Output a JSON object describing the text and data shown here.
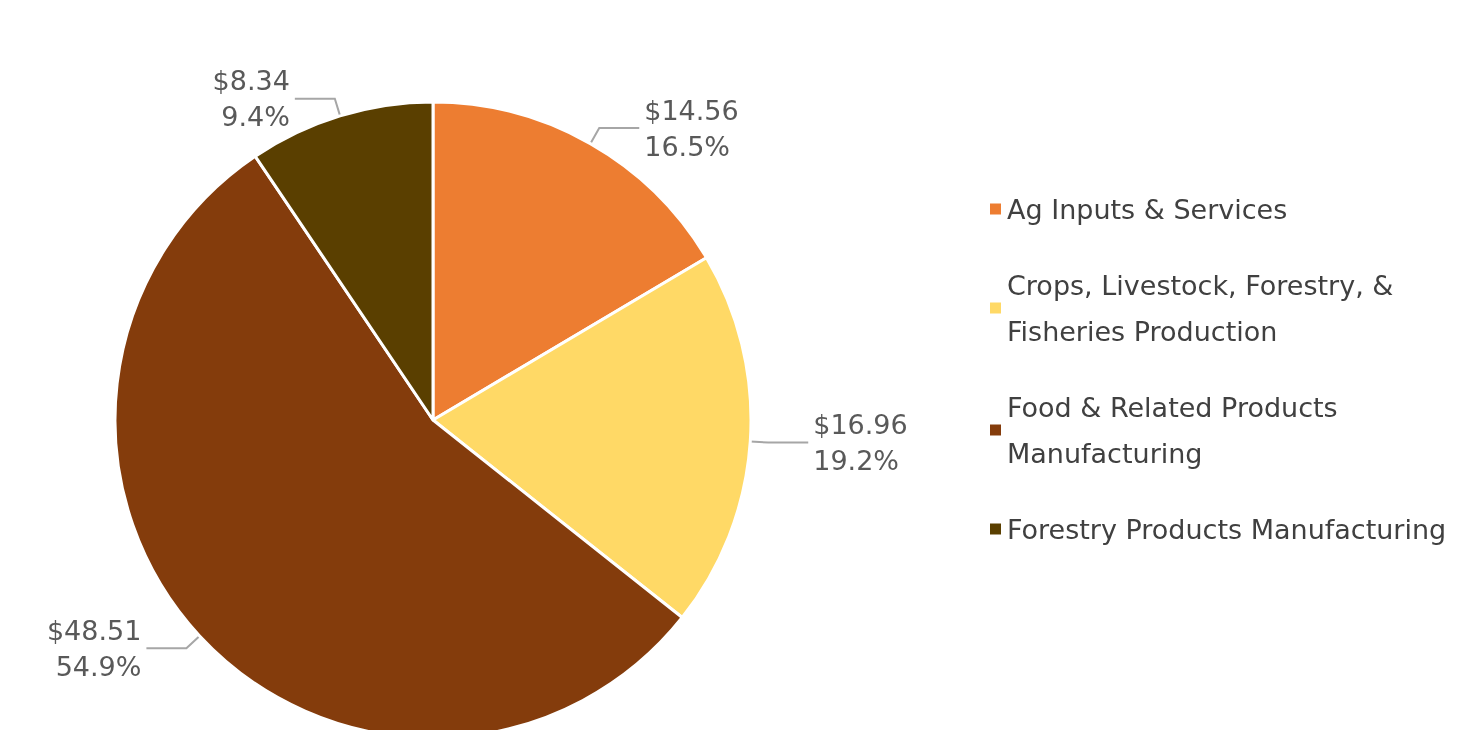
{
  "chart_data": {
    "type": "pie",
    "categories": [
      "Ag Inputs & Services",
      "Crops, Livestock, Forestry, & Fisheries Production",
      "Food & Related Products Manufacturing",
      "Forestry Products Manufacturing"
    ],
    "values": [
      14.56,
      16.96,
      48.51,
      8.34
    ],
    "colors": [
      "#ed7d31",
      "#ffd966",
      "#843c0c",
      "#5a3f00"
    ],
    "value_labels": [
      "$14.56\n16.5%",
      "$16.96\n19.2%",
      "$48.51\n54.9%",
      "$8.34\n9.4%"
    ],
    "legend": "right"
  }
}
